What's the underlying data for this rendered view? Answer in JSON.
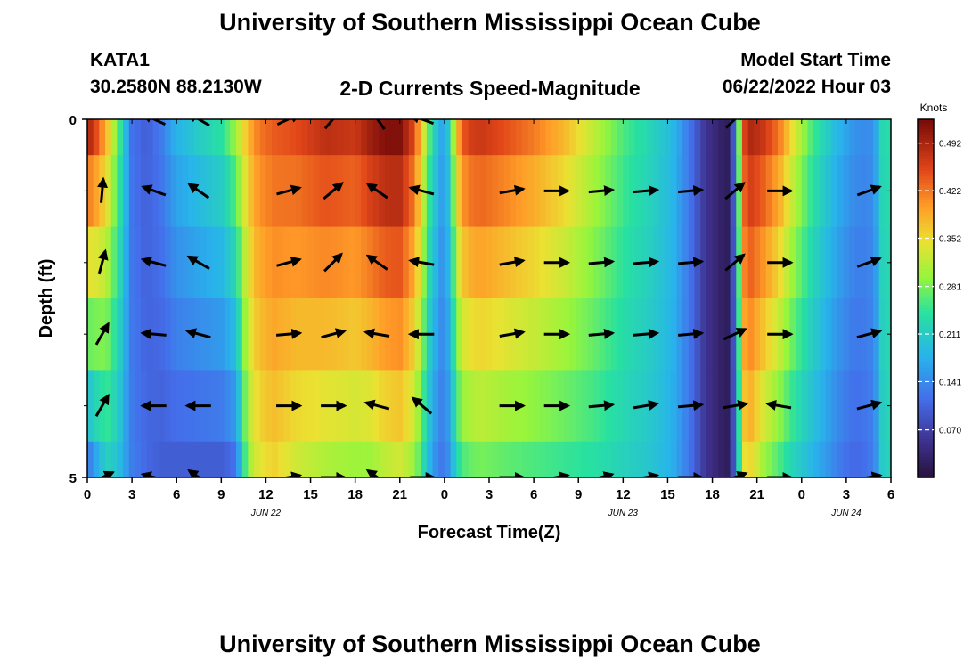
{
  "page": {
    "title": "University of Southern Mississippi Ocean Cube",
    "footer_title": "University of Southern Mississippi Ocean Cube"
  },
  "header": {
    "station": "KATA1",
    "coords": "30.2580N  88.2130W",
    "plot_title": "2-D Currents Speed-Magnitude",
    "start_label": "Model Start Time",
    "start_value": "06/22/2022 Hour 03"
  },
  "chart_data": {
    "type": "heatmap",
    "title": "2-D Currents Speed-Magnitude",
    "xlabel": "Forecast Time(Z)",
    "ylabel": "Depth (ft)",
    "x_hours_since_jun22_00z": [
      0,
      54
    ],
    "x_ticks": [
      {
        "h": 0,
        "label": "0"
      },
      {
        "h": 3,
        "label": "3"
      },
      {
        "h": 6,
        "label": "6"
      },
      {
        "h": 9,
        "label": "9"
      },
      {
        "h": 12,
        "label": "12"
      },
      {
        "h": 15,
        "label": "15"
      },
      {
        "h": 18,
        "label": "18"
      },
      {
        "h": 21,
        "label": "21"
      },
      {
        "h": 24,
        "label": "0"
      },
      {
        "h": 27,
        "label": "3"
      },
      {
        "h": 30,
        "label": "6"
      },
      {
        "h": 33,
        "label": "9"
      },
      {
        "h": 36,
        "label": "12"
      },
      {
        "h": 39,
        "label": "15"
      },
      {
        "h": 42,
        "label": "18"
      },
      {
        "h": 45,
        "label": "21"
      },
      {
        "h": 48,
        "label": "0"
      },
      {
        "h": 51,
        "label": "3"
      },
      {
        "h": 54,
        "label": "6"
      }
    ],
    "date_labels": [
      {
        "h": 12,
        "label": "JUN 22"
      },
      {
        "h": 36,
        "label": "JUN 23"
      },
      {
        "h": 51,
        "label": "JUN 24"
      }
    ],
    "y_range_ft": [
      0,
      5
    ],
    "y_ticks": [
      {
        "v": 0,
        "label": "0"
      },
      {
        "v": 5,
        "label": "5"
      }
    ],
    "y_minor_ticks": [
      1,
      2,
      3,
      4
    ],
    "colorbar": {
      "unit": "Knots",
      "range": [
        0,
        0.527
      ],
      "ticks": [
        0.07,
        0.141,
        0.211,
        0.281,
        0.352,
        0.422,
        0.492
      ],
      "tick_labels": [
        "0.070",
        "0.141",
        "0.211",
        "0.281",
        "0.352",
        "0.422",
        "0.492"
      ]
    },
    "depth_layers": [
      0,
      1,
      2,
      3,
      4,
      5
    ],
    "speed_profile": {
      "hours": [
        0,
        0.7,
        1.3,
        2.0,
        3.0,
        4.0,
        5.0,
        6.0,
        7.0,
        8.0,
        9.0,
        10.0,
        10.8,
        11.5,
        12.5,
        14.0,
        16.0,
        18.0,
        19.0,
        20.0,
        21.0,
        22.0,
        22.5,
        23.0,
        23.5,
        24.0,
        25.0,
        25.5,
        26.5,
        28.0,
        30.0,
        32.0,
        34.0,
        36.0,
        38.0,
        39.5,
        40.5,
        41.5,
        42.5,
        43.2,
        43.7,
        44.0,
        44.5,
        45.5,
        46.5,
        47.5,
        48.5,
        49.5,
        50.5,
        51.5,
        52.5,
        53.2,
        53.7,
        54.0
      ],
      "surface": [
        0.5,
        0.44,
        0.38,
        0.28,
        0.12,
        0.1,
        0.13,
        0.18,
        0.2,
        0.22,
        0.24,
        0.3,
        0.38,
        0.42,
        0.44,
        0.45,
        0.48,
        0.47,
        0.5,
        0.52,
        0.52,
        0.45,
        0.35,
        0.26,
        0.2,
        0.15,
        0.4,
        0.46,
        0.47,
        0.45,
        0.42,
        0.38,
        0.32,
        0.26,
        0.22,
        0.18,
        0.12,
        0.06,
        0.03,
        0.02,
        0.2,
        0.44,
        0.49,
        0.47,
        0.42,
        0.34,
        0.27,
        0.22,
        0.18,
        0.15,
        0.14,
        0.18,
        0.3,
        0.1
      ],
      "bottom": [
        0.12,
        0.18,
        0.22,
        0.2,
        0.13,
        0.11,
        0.1,
        0.1,
        0.1,
        0.1,
        0.1,
        0.12,
        0.3,
        0.34,
        0.36,
        0.33,
        0.31,
        0.3,
        0.3,
        0.32,
        0.33,
        0.3,
        0.24,
        0.18,
        0.14,
        0.12,
        0.24,
        0.27,
        0.28,
        0.27,
        0.26,
        0.25,
        0.24,
        0.22,
        0.2,
        0.17,
        0.12,
        0.06,
        0.03,
        0.02,
        0.18,
        0.34,
        0.36,
        0.3,
        0.26,
        0.22,
        0.19,
        0.16,
        0.13,
        0.11,
        0.12,
        0.16,
        0.28,
        0.1
      ]
    },
    "vectors": {
      "columns_h": [
        1,
        4.5,
        7.5,
        13.5,
        16.5,
        19.5,
        22.5,
        28.5,
        31.5,
        34.5,
        37.5,
        40.5,
        43.5,
        46.5,
        52.5
      ],
      "angles_deg": [
        [
          null,
          155,
          150,
          25,
          50,
          125,
          160,
          null,
          null,
          null,
          null,
          null,
          45,
          null,
          null
        ],
        [
          85,
          160,
          145,
          15,
          40,
          145,
          165,
          10,
          0,
          5,
          5,
          5,
          40,
          0,
          20
        ],
        [
          75,
          165,
          150,
          15,
          45,
          145,
          170,
          10,
          0,
          5,
          5,
          5,
          40,
          0,
          20
        ],
        [
          60,
          175,
          165,
          5,
          15,
          170,
          180,
          10,
          0,
          5,
          5,
          5,
          25,
          0,
          15
        ],
        [
          60,
          180,
          180,
          0,
          0,
          165,
          140,
          0,
          0,
          5,
          10,
          5,
          10,
          170,
          15
        ],
        [
          25,
          165,
          145,
          10,
          0,
          145,
          0,
          0,
          10,
          15,
          10,
          0,
          20,
          0,
          10
        ]
      ]
    }
  }
}
